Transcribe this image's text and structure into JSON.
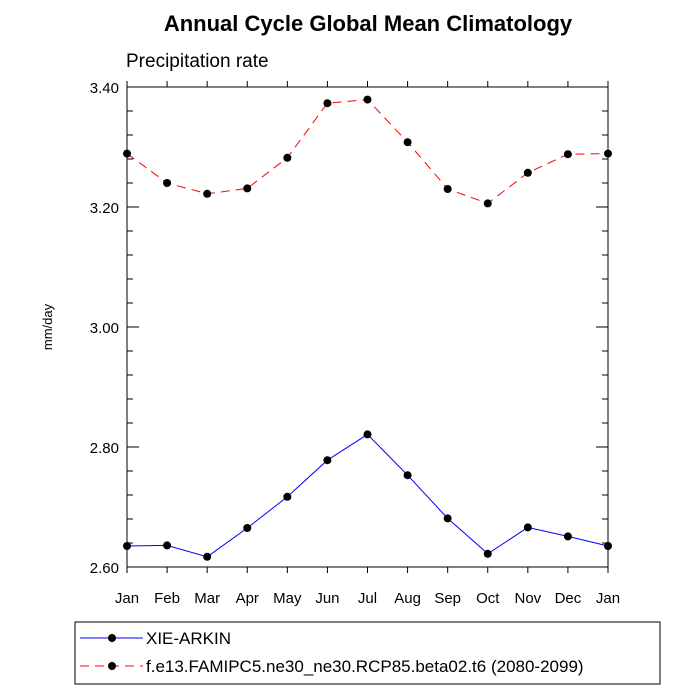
{
  "chart_data": {
    "type": "line",
    "title": "Annual Cycle Global Mean Climatology",
    "subtitle": "Precipitation rate",
    "ylabel": "mm/day",
    "xlabel": "",
    "ylim": [
      2.6,
      3.4
    ],
    "yticks": [
      "2.60",
      "2.80",
      "3.00",
      "3.20",
      "3.40"
    ],
    "ytick_values": [
      2.6,
      2.8,
      3.0,
      3.2,
      3.4
    ],
    "categories": [
      "Jan",
      "Feb",
      "Mar",
      "Apr",
      "May",
      "Jun",
      "Jul",
      "Aug",
      "Sep",
      "Oct",
      "Nov",
      "Dec",
      "Jan"
    ],
    "legend_position": "bottom",
    "series": [
      {
        "name": "XIE-ARKIN",
        "color": "#0000ff",
        "style": "solid",
        "values": [
          2.635,
          2.636,
          2.617,
          2.665,
          2.717,
          2.778,
          2.821,
          2.753,
          2.681,
          2.622,
          2.666,
          2.651,
          2.635
        ]
      },
      {
        "name": "f.e13.FAMIPC5.ne30_ne30.RCP85.beta02.t6 (2080-2099)",
        "color": "#ff0000",
        "style": "dashed",
        "values": [
          3.289,
          3.24,
          3.222,
          3.231,
          3.282,
          3.373,
          3.379,
          3.308,
          3.23,
          3.206,
          3.257,
          3.288,
          3.289
        ]
      }
    ]
  }
}
